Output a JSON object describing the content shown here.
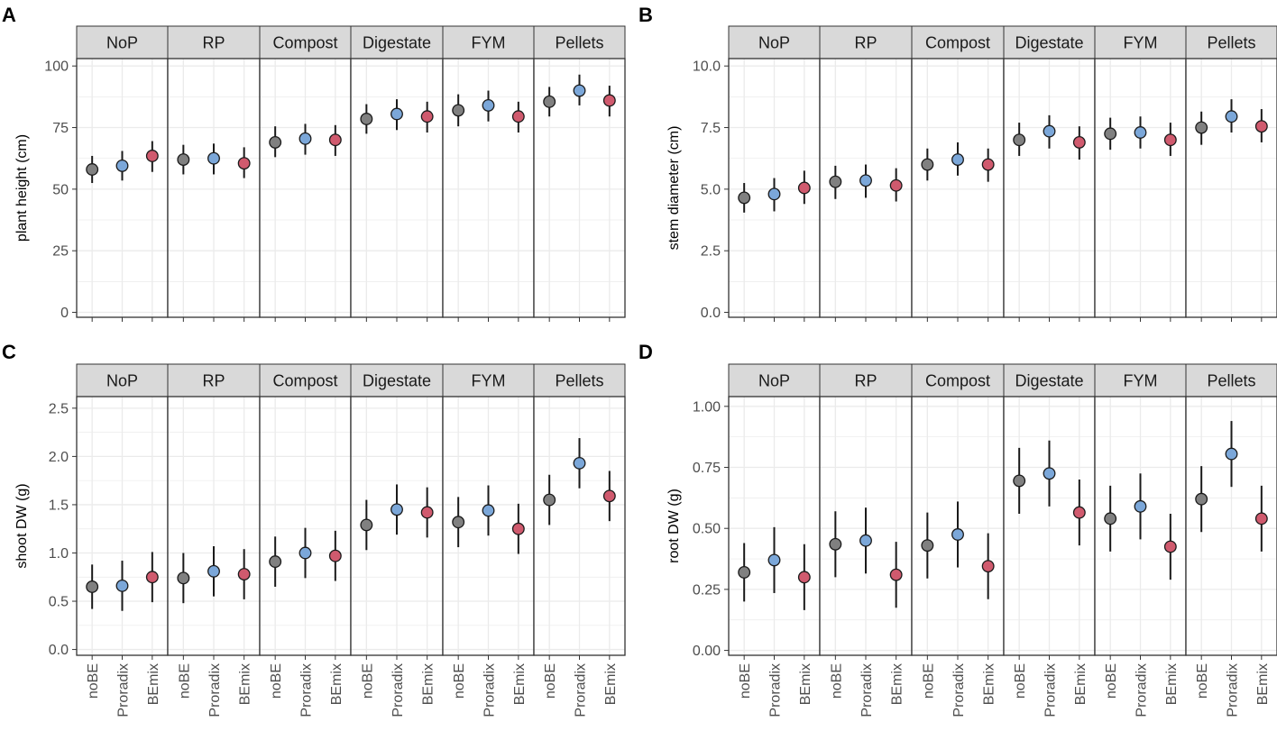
{
  "figure": {
    "facet_order": [
      "NoP",
      "RP",
      "Compost",
      "Digestate",
      "FYM",
      "Pellets"
    ],
    "treatment_order": [
      "noBE",
      "Proradix",
      "BEmix"
    ],
    "colors": {
      "noBE": "#808080",
      "Proradix": "#7BA7D9",
      "BEmix": "#D05A6E",
      "strip_fill": "#D9D9D9",
      "grid": "#EBEBEB",
      "border": "#333333"
    }
  },
  "chart_data": [
    {
      "panel": "A",
      "type": "scatter",
      "ylabel": "plant height (cm)",
      "ylim": [
        -2,
        103
      ],
      "yticks": [
        0,
        25,
        50,
        75,
        100
      ],
      "ytick_labels": [
        "0",
        "25",
        "50",
        "75",
        "100"
      ],
      "show_xlabels": false,
      "facets": [
        {
          "label": "NoP",
          "points": [
            {
              "x": "noBE",
              "y": 58,
              "lo": 52.5,
              "hi": 63.5
            },
            {
              "x": "Proradix",
              "y": 59.5,
              "lo": 53.5,
              "hi": 65.5
            },
            {
              "x": "BEmix",
              "y": 63.5,
              "lo": 57,
              "hi": 69.5
            }
          ]
        },
        {
          "label": "RP",
          "points": [
            {
              "x": "noBE",
              "y": 62,
              "lo": 56,
              "hi": 68
            },
            {
              "x": "Proradix",
              "y": 62.5,
              "lo": 56,
              "hi": 68.5
            },
            {
              "x": "BEmix",
              "y": 60.5,
              "lo": 54.5,
              "hi": 67
            }
          ]
        },
        {
          "label": "Compost",
          "points": [
            {
              "x": "noBE",
              "y": 69,
              "lo": 63,
              "hi": 75.5
            },
            {
              "x": "Proradix",
              "y": 70.5,
              "lo": 64,
              "hi": 76.5
            },
            {
              "x": "BEmix",
              "y": 70,
              "lo": 63.5,
              "hi": 76
            }
          ]
        },
        {
          "label": "Digestate",
          "points": [
            {
              "x": "noBE",
              "y": 78.5,
              "lo": 72.5,
              "hi": 84.5
            },
            {
              "x": "Proradix",
              "y": 80.5,
              "lo": 74,
              "hi": 86.5
            },
            {
              "x": "BEmix",
              "y": 79.5,
              "lo": 73,
              "hi": 85.5
            }
          ]
        },
        {
          "label": "FYM",
          "points": [
            {
              "x": "noBE",
              "y": 82,
              "lo": 75.5,
              "hi": 88.5
            },
            {
              "x": "Proradix",
              "y": 84,
              "lo": 77.5,
              "hi": 90
            },
            {
              "x": "BEmix",
              "y": 79.5,
              "lo": 73,
              "hi": 85.5
            }
          ]
        },
        {
          "label": "Pellets",
          "points": [
            {
              "x": "noBE",
              "y": 85.5,
              "lo": 79.5,
              "hi": 91.5
            },
            {
              "x": "Proradix",
              "y": 90,
              "lo": 84,
              "hi": 96.5
            },
            {
              "x": "BEmix",
              "y": 86,
              "lo": 79.5,
              "hi": 92
            }
          ]
        }
      ]
    },
    {
      "panel": "B",
      "type": "scatter",
      "ylabel": "stem diameter (cm)",
      "ylim": [
        -0.2,
        10.3
      ],
      "yticks": [
        0,
        2.5,
        5,
        7.5,
        10
      ],
      "ytick_labels": [
        "0.0",
        "2.5",
        "5.0",
        "7.5",
        "10.0"
      ],
      "show_xlabels": false,
      "facets": [
        {
          "label": "NoP",
          "points": [
            {
              "x": "noBE",
              "y": 4.65,
              "lo": 4.05,
              "hi": 5.25
            },
            {
              "x": "Proradix",
              "y": 4.8,
              "lo": 4.1,
              "hi": 5.45
            },
            {
              "x": "BEmix",
              "y": 5.05,
              "lo": 4.4,
              "hi": 5.75
            }
          ]
        },
        {
          "label": "RP",
          "points": [
            {
              "x": "noBE",
              "y": 5.3,
              "lo": 4.6,
              "hi": 5.95
            },
            {
              "x": "Proradix",
              "y": 5.35,
              "lo": 4.65,
              "hi": 6.0
            },
            {
              "x": "BEmix",
              "y": 5.15,
              "lo": 4.5,
              "hi": 5.85
            }
          ]
        },
        {
          "label": "Compost",
          "points": [
            {
              "x": "noBE",
              "y": 6.0,
              "lo": 5.35,
              "hi": 6.65
            },
            {
              "x": "Proradix",
              "y": 6.2,
              "lo": 5.55,
              "hi": 6.9
            },
            {
              "x": "BEmix",
              "y": 6.0,
              "lo": 5.3,
              "hi": 6.65
            }
          ]
        },
        {
          "label": "Digestate",
          "points": [
            {
              "x": "noBE",
              "y": 7.0,
              "lo": 6.35,
              "hi": 7.7
            },
            {
              "x": "Proradix",
              "y": 7.35,
              "lo": 6.65,
              "hi": 8.0
            },
            {
              "x": "BEmix",
              "y": 6.9,
              "lo": 6.2,
              "hi": 7.55
            }
          ]
        },
        {
          "label": "FYM",
          "points": [
            {
              "x": "noBE",
              "y": 7.25,
              "lo": 6.6,
              "hi": 7.9
            },
            {
              "x": "Proradix",
              "y": 7.3,
              "lo": 6.65,
              "hi": 7.95
            },
            {
              "x": "BEmix",
              "y": 7.0,
              "lo": 6.35,
              "hi": 7.7
            }
          ]
        },
        {
          "label": "Pellets",
          "points": [
            {
              "x": "noBE",
              "y": 7.5,
              "lo": 6.8,
              "hi": 8.15
            },
            {
              "x": "Proradix",
              "y": 7.95,
              "lo": 7.3,
              "hi": 8.65
            },
            {
              "x": "BEmix",
              "y": 7.55,
              "lo": 6.9,
              "hi": 8.25
            }
          ]
        }
      ]
    },
    {
      "panel": "C",
      "type": "scatter",
      "ylabel": "shoot DW (g)",
      "ylim": [
        -0.06,
        2.62
      ],
      "yticks": [
        0,
        0.5,
        1,
        1.5,
        2,
        2.5
      ],
      "ytick_labels": [
        "0.0",
        "0.5",
        "1.0",
        "1.5",
        "2.0",
        "2.5"
      ],
      "show_xlabels": true,
      "facets": [
        {
          "label": "NoP",
          "points": [
            {
              "x": "noBE",
              "y": 0.65,
              "lo": 0.42,
              "hi": 0.88
            },
            {
              "x": "Proradix",
              "y": 0.66,
              "lo": 0.4,
              "hi": 0.92
            },
            {
              "x": "BEmix",
              "y": 0.75,
              "lo": 0.49,
              "hi": 1.01
            }
          ]
        },
        {
          "label": "RP",
          "points": [
            {
              "x": "noBE",
              "y": 0.74,
              "lo": 0.48,
              "hi": 1.0
            },
            {
              "x": "Proradix",
              "y": 0.81,
              "lo": 0.55,
              "hi": 1.07
            },
            {
              "x": "BEmix",
              "y": 0.78,
              "lo": 0.52,
              "hi": 1.04
            }
          ]
        },
        {
          "label": "Compost",
          "points": [
            {
              "x": "noBE",
              "y": 0.91,
              "lo": 0.65,
              "hi": 1.17
            },
            {
              "x": "Proradix",
              "y": 1.0,
              "lo": 0.74,
              "hi": 1.26
            },
            {
              "x": "BEmix",
              "y": 0.97,
              "lo": 0.71,
              "hi": 1.23
            }
          ]
        },
        {
          "label": "Digestate",
          "points": [
            {
              "x": "noBE",
              "y": 1.29,
              "lo": 1.03,
              "hi": 1.55
            },
            {
              "x": "Proradix",
              "y": 1.45,
              "lo": 1.19,
              "hi": 1.71
            },
            {
              "x": "BEmix",
              "y": 1.42,
              "lo": 1.16,
              "hi": 1.68
            }
          ]
        },
        {
          "label": "FYM",
          "points": [
            {
              "x": "noBE",
              "y": 1.32,
              "lo": 1.06,
              "hi": 1.58
            },
            {
              "x": "Proradix",
              "y": 1.44,
              "lo": 1.18,
              "hi": 1.7
            },
            {
              "x": "BEmix",
              "y": 1.25,
              "lo": 0.99,
              "hi": 1.51
            }
          ]
        },
        {
          "label": "Pellets",
          "points": [
            {
              "x": "noBE",
              "y": 1.55,
              "lo": 1.29,
              "hi": 1.81
            },
            {
              "x": "Proradix",
              "y": 1.93,
              "lo": 1.67,
              "hi": 2.19
            },
            {
              "x": "BEmix",
              "y": 1.59,
              "lo": 1.33,
              "hi": 1.85
            }
          ]
        }
      ]
    },
    {
      "panel": "D",
      "type": "scatter",
      "ylabel": "root DW (g)",
      "ylim": [
        -0.02,
        1.04
      ],
      "yticks": [
        0,
        0.25,
        0.5,
        0.75,
        1
      ],
      "ytick_labels": [
        "0.00",
        "0.25",
        "0.50",
        "0.75",
        "1.00"
      ],
      "show_xlabels": true,
      "facets": [
        {
          "label": "NoP",
          "points": [
            {
              "x": "noBE",
              "y": 0.32,
              "lo": 0.2,
              "hi": 0.44
            },
            {
              "x": "Proradix",
              "y": 0.37,
              "lo": 0.235,
              "hi": 0.505
            },
            {
              "x": "BEmix",
              "y": 0.3,
              "lo": 0.165,
              "hi": 0.435
            }
          ]
        },
        {
          "label": "RP",
          "points": [
            {
              "x": "noBE",
              "y": 0.435,
              "lo": 0.3,
              "hi": 0.57
            },
            {
              "x": "Proradix",
              "y": 0.45,
              "lo": 0.315,
              "hi": 0.585
            },
            {
              "x": "BEmix",
              "y": 0.31,
              "lo": 0.175,
              "hi": 0.445
            }
          ]
        },
        {
          "label": "Compost",
          "points": [
            {
              "x": "noBE",
              "y": 0.43,
              "lo": 0.295,
              "hi": 0.565
            },
            {
              "x": "Proradix",
              "y": 0.475,
              "lo": 0.34,
              "hi": 0.61
            },
            {
              "x": "BEmix",
              "y": 0.345,
              "lo": 0.21,
              "hi": 0.48
            }
          ]
        },
        {
          "label": "Digestate",
          "points": [
            {
              "x": "noBE",
              "y": 0.695,
              "lo": 0.56,
              "hi": 0.83
            },
            {
              "x": "Proradix",
              "y": 0.725,
              "lo": 0.59,
              "hi": 0.86
            },
            {
              "x": "BEmix",
              "y": 0.565,
              "lo": 0.43,
              "hi": 0.7
            }
          ]
        },
        {
          "label": "FYM",
          "points": [
            {
              "x": "noBE",
              "y": 0.54,
              "lo": 0.405,
              "hi": 0.675
            },
            {
              "x": "Proradix",
              "y": 0.59,
              "lo": 0.455,
              "hi": 0.725
            },
            {
              "x": "BEmix",
              "y": 0.425,
              "lo": 0.29,
              "hi": 0.56
            }
          ]
        },
        {
          "label": "Pellets",
          "points": [
            {
              "x": "noBE",
              "y": 0.62,
              "lo": 0.485,
              "hi": 0.755
            },
            {
              "x": "Proradix",
              "y": 0.805,
              "lo": 0.67,
              "hi": 0.94
            },
            {
              "x": "BEmix",
              "y": 0.54,
              "lo": 0.405,
              "hi": 0.675
            }
          ]
        }
      ]
    }
  ]
}
